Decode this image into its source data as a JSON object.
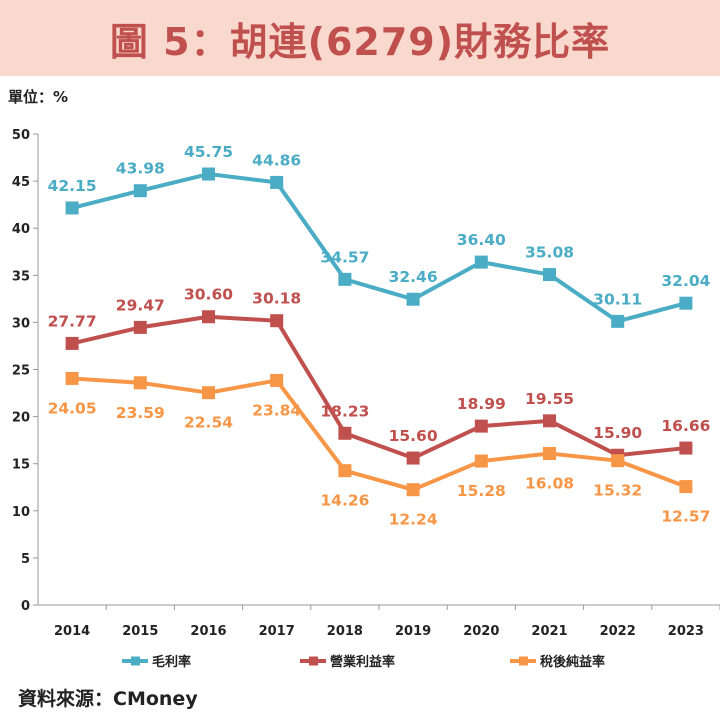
{
  "header": {
    "title": "圖 5：胡連(6279)財務比率"
  },
  "unit": "單位：%",
  "source": "資料來源：CMoney",
  "chart_data": {
    "type": "line",
    "title": "圖 5：胡連(6279)財務比率",
    "xlabel": "",
    "ylabel": "單位：%",
    "ylim": [
      0,
      50
    ],
    "yticks": [
      "0",
      "5",
      "10",
      "15",
      "20",
      "25",
      "30",
      "35",
      "40",
      "45",
      "50"
    ],
    "grid": false,
    "legend": "bottom",
    "categories": [
      "2014",
      "2015",
      "2016",
      "2017",
      "2018",
      "2019",
      "2020",
      "2021",
      "2022",
      "2023"
    ],
    "series": [
      {
        "name": "毛利率",
        "color": "#4bacc6",
        "label_position": "above",
        "values": [
          42.15,
          43.98,
          45.75,
          44.86,
          34.57,
          32.46,
          36.4,
          35.08,
          30.11,
          32.04
        ],
        "labels": [
          "42.15",
          "43.98",
          "45.75",
          "44.86",
          "34.57",
          "32.46",
          "36.40",
          "35.08",
          "30.11",
          "32.04"
        ]
      },
      {
        "name": "營業利益率",
        "color": "#c0504d",
        "label_position": "above",
        "values": [
          27.77,
          29.47,
          30.6,
          30.18,
          18.23,
          15.6,
          18.99,
          19.55,
          15.9,
          16.66
        ],
        "labels": [
          "27.77",
          "29.47",
          "30.60",
          "30.18",
          "18.23",
          "15.60",
          "18.99",
          "19.55",
          "15.90",
          "16.66"
        ]
      },
      {
        "name": "稅後純益率",
        "color": "#f79646",
        "label_position": "below",
        "values": [
          24.05,
          23.59,
          22.54,
          23.84,
          14.26,
          12.24,
          15.28,
          16.08,
          15.32,
          12.57
        ],
        "labels": [
          "24.05",
          "23.59",
          "22.54",
          "23.84",
          "14.26",
          "12.24",
          "15.28",
          "16.08",
          "15.32",
          "12.57"
        ]
      }
    ]
  }
}
